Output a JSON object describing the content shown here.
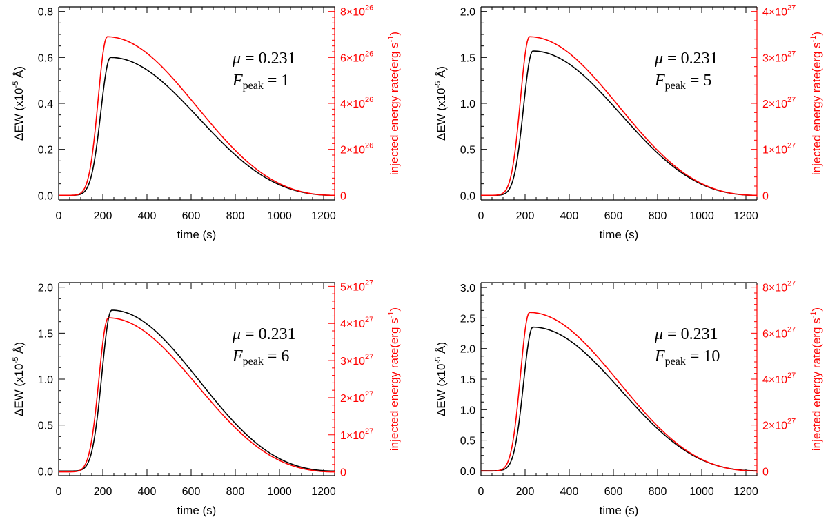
{
  "colors": {
    "ew": "#000000",
    "energy": "#ff0000",
    "background": "#ffffff"
  },
  "chart_data": [
    {
      "type": "line",
      "panel": "top-left",
      "xlabel": "time (s)",
      "ylabel_main": "ΔEW (x10",
      "ylabel_exp": "-5",
      "ylabel_tail": " Å)",
      "y2label_main": "injected energy rate(erg s",
      "y2label_exp": "-1",
      "y2label_tail": ")",
      "xlim": [
        0,
        1250
      ],
      "xticks": [
        0,
        200,
        400,
        600,
        800,
        1000,
        1200
      ],
      "xtick_labels": [
        "0",
        "200",
        "400",
        "600",
        "800",
        "1000",
        "1200"
      ],
      "ylim": [
        -0.02,
        0.82
      ],
      "yticks": [
        0.0,
        0.2,
        0.4,
        0.6,
        0.8
      ],
      "ytick_labels": [
        "0.0",
        "0.2",
        "0.4",
        "0.6",
        "0.8"
      ],
      "y2lim": [
        -0.2,
        8.2
      ],
      "y2ticks": [
        0,
        2,
        4,
        6,
        8
      ],
      "y2tick_labels": [
        {
          "m": "0",
          "e": ""
        },
        {
          "m": "2×10",
          "e": "26"
        },
        {
          "m": "4×10",
          "e": "26"
        },
        {
          "m": "6×10",
          "e": "26"
        },
        {
          "m": "8×10",
          "e": "26"
        }
      ],
      "annotation_mu_label": "μ",
      "annotation_mu_value": " = 0.231",
      "annotation_f_label": "F",
      "annotation_f_sub": "peak",
      "annotation_f_value": " = 1",
      "series": [
        {
          "name": "ΔEW",
          "axis": "left",
          "peak": 0.6,
          "peak_time": 235,
          "onset": 50,
          "rise_sigma": 62
        },
        {
          "name": "injected energy rate",
          "axis": "right",
          "peak": 6.9,
          "peak_time": 220,
          "onset": 50,
          "rise_sigma": 58
        }
      ]
    },
    {
      "type": "line",
      "panel": "top-right",
      "xlabel": "time (s)",
      "ylabel_main": "ΔEW (x10",
      "ylabel_exp": "-5",
      "ylabel_tail": " Å)",
      "y2label_main": "injected energy rate(erg s",
      "y2label_exp": "-1",
      "y2label_tail": ")",
      "xlim": [
        0,
        1250
      ],
      "xticks": [
        0,
        200,
        400,
        600,
        800,
        1000,
        1200
      ],
      "xtick_labels": [
        "0",
        "200",
        "400",
        "600",
        "800",
        "1000",
        "1200"
      ],
      "ylim": [
        -0.05,
        2.05
      ],
      "yticks": [
        0.0,
        0.5,
        1.0,
        1.5,
        2.0
      ],
      "ytick_labels": [
        "0.0",
        "0.5",
        "1.0",
        "1.5",
        "2.0"
      ],
      "y2lim": [
        -0.1,
        4.1
      ],
      "y2ticks": [
        0,
        1,
        2,
        3,
        4
      ],
      "y2tick_labels": [
        {
          "m": "0",
          "e": ""
        },
        {
          "m": "1×10",
          "e": "27"
        },
        {
          "m": "2×10",
          "e": "27"
        },
        {
          "m": "3×10",
          "e": "27"
        },
        {
          "m": "4×10",
          "e": "27"
        }
      ],
      "annotation_mu_label": "μ",
      "annotation_mu_value": " = 0.231",
      "annotation_f_label": "F",
      "annotation_f_sub": "peak",
      "annotation_f_value": " = 5",
      "series": [
        {
          "name": "ΔEW",
          "axis": "left",
          "peak": 1.57,
          "peak_time": 235,
          "onset": 50,
          "rise_sigma": 60
        },
        {
          "name": "injected energy rate",
          "axis": "right",
          "peak": 3.45,
          "peak_time": 220,
          "onset": 50,
          "rise_sigma": 58
        }
      ]
    },
    {
      "type": "line",
      "panel": "bottom-left",
      "xlabel": "time (s)",
      "ylabel_main": "ΔEW (x10",
      "ylabel_exp": "-5",
      "ylabel_tail": " Å)",
      "y2label_main": "injected energy rate(erg s",
      "y2label_exp": "-1",
      "y2label_tail": ")",
      "xlim": [
        0,
        1250
      ],
      "xticks": [
        0,
        200,
        400,
        600,
        800,
        1000,
        1200
      ],
      "xtick_labels": [
        "0",
        "200",
        "400",
        "600",
        "800",
        "1000",
        "1200"
      ],
      "ylim": [
        -0.05,
        2.05
      ],
      "yticks": [
        0.0,
        0.5,
        1.0,
        1.5,
        2.0
      ],
      "ytick_labels": [
        "0.0",
        "0.5",
        "1.0",
        "1.5",
        "2.0"
      ],
      "y2lim": [
        -0.1,
        5.1
      ],
      "y2ticks": [
        0,
        1,
        2,
        3,
        4,
        5
      ],
      "y2tick_labels": [
        {
          "m": "0",
          "e": ""
        },
        {
          "m": "1×10",
          "e": "27"
        },
        {
          "m": "2×10",
          "e": "27"
        },
        {
          "m": "3×10",
          "e": "27"
        },
        {
          "m": "4×10",
          "e": "27"
        },
        {
          "m": "5×10",
          "e": "27"
        }
      ],
      "annotation_mu_label": "μ",
      "annotation_mu_value": " = 0.231",
      "annotation_f_label": "F",
      "annotation_f_sub": "peak",
      "annotation_f_value": " = 6",
      "series": [
        {
          "name": "ΔEW",
          "axis": "left",
          "peak": 1.75,
          "peak_time": 240,
          "onset": 50,
          "rise_sigma": 62
        },
        {
          "name": "injected energy rate",
          "axis": "right",
          "peak": 4.15,
          "peak_time": 225,
          "onset": 50,
          "rise_sigma": 60
        }
      ]
    },
    {
      "type": "line",
      "panel": "bottom-right",
      "xlabel": "time (s)",
      "ylabel_main": "ΔEW (x10",
      "ylabel_exp": "-5",
      "ylabel_tail": " Å)",
      "y2label_main": "injected energy rate(erg s",
      "y2label_exp": "-1",
      "y2label_tail": ")",
      "xlim": [
        0,
        1250
      ],
      "xticks": [
        0,
        200,
        400,
        600,
        800,
        1000,
        1200
      ],
      "xtick_labels": [
        "0",
        "200",
        "400",
        "600",
        "800",
        "1000",
        "1200"
      ],
      "ylim": [
        -0.08,
        3.08
      ],
      "yticks": [
        0.0,
        0.5,
        1.0,
        1.5,
        2.0,
        2.5,
        3.0
      ],
      "ytick_labels": [
        "0.0",
        "0.5",
        "1.0",
        "1.5",
        "2.0",
        "2.5",
        "3.0"
      ],
      "y2lim": [
        -0.2,
        8.2
      ],
      "y2ticks": [
        0,
        2,
        4,
        6,
        8
      ],
      "y2tick_labels": [
        {
          "m": "0",
          "e": ""
        },
        {
          "m": "2×10",
          "e": "27"
        },
        {
          "m": "4×10",
          "e": "27"
        },
        {
          "m": "6×10",
          "e": "27"
        },
        {
          "m": "8×10",
          "e": "27"
        }
      ],
      "annotation_mu_label": "μ",
      "annotation_mu_value": " = 0.231",
      "annotation_f_label": "F",
      "annotation_f_sub": "peak",
      "annotation_f_value": " = 10",
      "series": [
        {
          "name": "ΔEW",
          "axis": "left",
          "peak": 2.35,
          "peak_time": 235,
          "onset": 50,
          "rise_sigma": 60
        },
        {
          "name": "injected energy rate",
          "axis": "right",
          "peak": 6.9,
          "peak_time": 220,
          "onset": 50,
          "rise_sigma": 58
        }
      ]
    }
  ]
}
